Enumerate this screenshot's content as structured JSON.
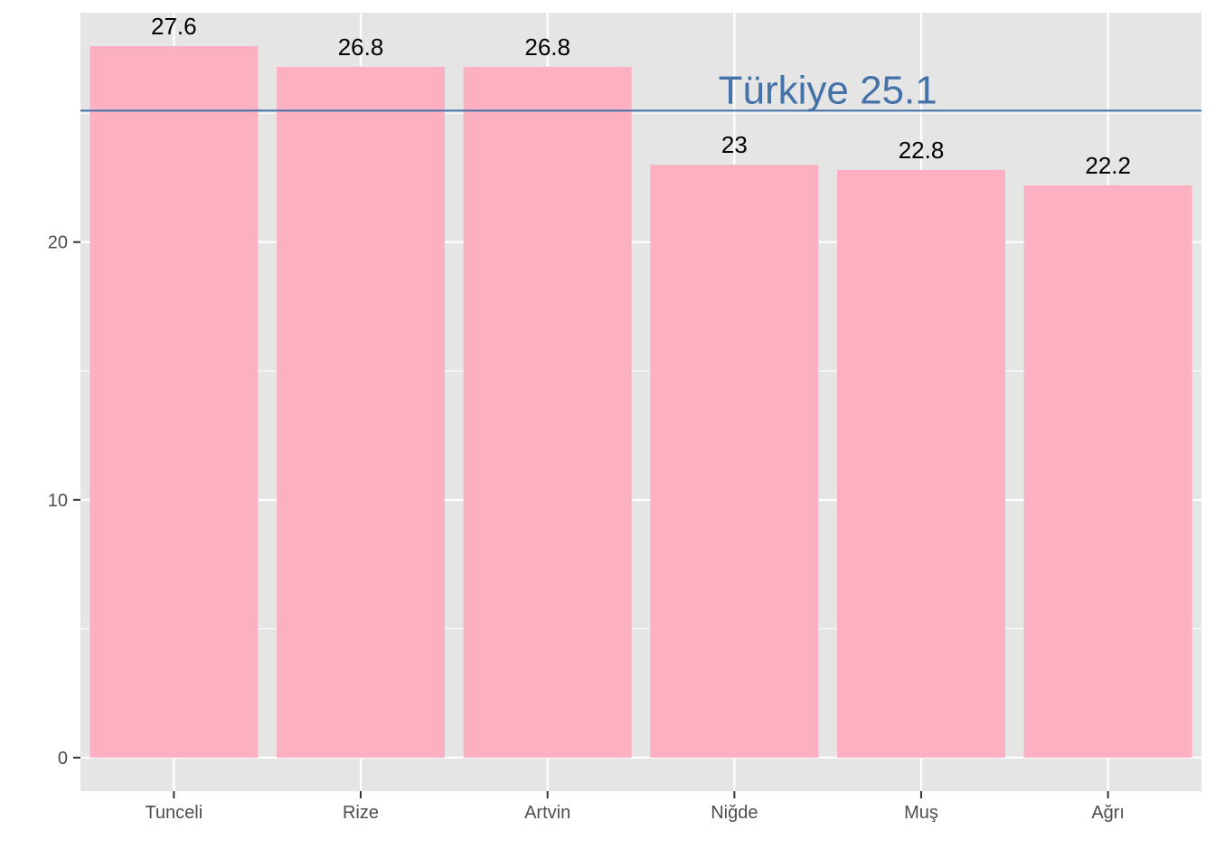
{
  "chart_data": {
    "type": "bar",
    "categories": [
      "Tunceli",
      "Rize",
      "Artvin",
      "Niğde",
      "Muş",
      "Ağrı"
    ],
    "values": [
      27.6,
      26.8,
      26.8,
      23,
      22.8,
      22.2
    ],
    "value_labels": [
      "27.6",
      "26.8",
      "26.8",
      "23",
      "22.8",
      "22.2"
    ],
    "title": "",
    "xlabel": "",
    "ylabel": "",
    "ylim": [
      -1.3,
      28.9
    ],
    "yticks": [
      0,
      10,
      20
    ],
    "ytick_labels": [
      "0",
      "10",
      "20"
    ],
    "grid": true,
    "reference_line": {
      "value": 25.1,
      "label": "Türkiye 25.1"
    },
    "colors": {
      "bar": "#FCB0C2",
      "panel": "#E5E5E5",
      "grid": "#FFFFFF",
      "reference": "#4472A8"
    }
  }
}
